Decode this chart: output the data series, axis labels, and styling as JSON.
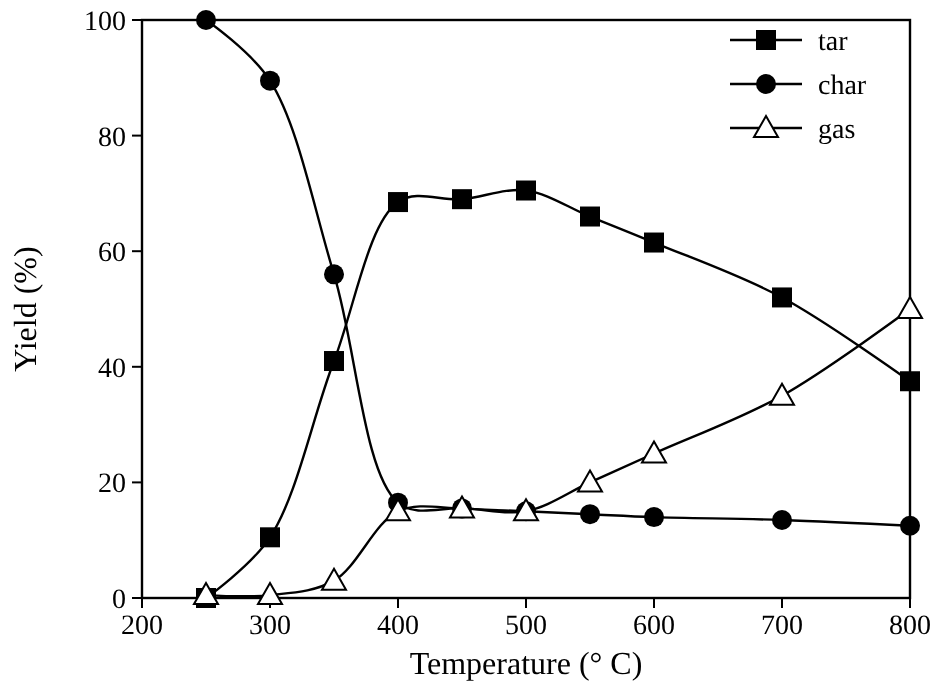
{
  "chart_data": {
    "type": "line",
    "xlabel": "Temperature (° C)",
    "ylabel": "Yield (%)",
    "x": [
      250,
      300,
      350,
      400,
      450,
      500,
      550,
      600,
      700,
      800
    ],
    "xlim": [
      200,
      800
    ],
    "xticks": [
      200,
      300,
      400,
      500,
      600,
      700,
      800
    ],
    "ylim": [
      0,
      100
    ],
    "yticks": [
      0,
      20,
      40,
      60,
      80,
      100
    ],
    "grid": false,
    "legend": "top right",
    "series": [
      {
        "name": "tar",
        "color": "#000000",
        "marker": "square",
        "values": [
          0,
          10.5,
          41,
          68.5,
          69,
          70.5,
          66,
          61.5,
          52,
          37.5
        ]
      },
      {
        "name": "char",
        "color": "#000000",
        "marker": "circle",
        "values": [
          100,
          89.5,
          56,
          16.5,
          15.5,
          15,
          14.5,
          14,
          13.5,
          12.5
        ]
      },
      {
        "name": "gas",
        "color": "#000000",
        "marker": "triangle",
        "values": [
          0.5,
          0.5,
          3,
          15,
          15.5,
          15,
          20,
          25,
          35,
          50
        ]
      }
    ]
  }
}
